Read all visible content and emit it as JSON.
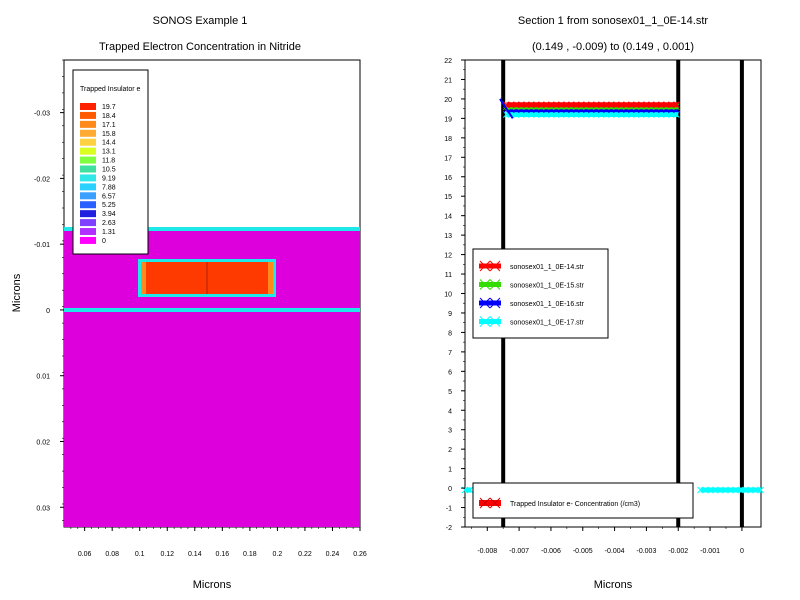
{
  "charts": {
    "left": {
      "title": "SONOS Example 1",
      "subtitle": "Trapped Electron Concentration in Nitride",
      "xlabel": "Microns",
      "ylabel": "Microns",
      "xticks": [
        "0.06",
        "0.08",
        "0.1",
        "0.12",
        "0.14",
        "0.16",
        "0.18",
        "0.2",
        "0.22",
        "0.24",
        "0.26"
      ],
      "yticks": [
        "-0.03",
        "-0.02",
        "-0.01",
        "0",
        "0.01",
        "0.02",
        "0.03"
      ],
      "legend_title": "Trapped Insulator e",
      "legend_levels": [
        "19.7",
        "18.4",
        "17.1",
        "15.8",
        "14.4",
        "13.1",
        "11.8",
        "10.5",
        "9.19",
        "7.88",
        "6.57",
        "5.25",
        "3.94",
        "2.63",
        "1.31",
        "0"
      ]
    },
    "right": {
      "title": "Section 1 from sonosex01_1_0E-14.str",
      "subtitle": "(0.149 , -0.009) to (0.149 , 0.001)",
      "xlabel": "Microns",
      "xticks": [
        "-0.008",
        "-0.007",
        "-0.006",
        "-0.005",
        "-0.004",
        "-0.003",
        "-0.002",
        "-0.001",
        "0"
      ],
      "yticks": [
        "-2",
        "-1",
        "0",
        "1",
        "2",
        "3",
        "4",
        "5",
        "6",
        "7",
        "8",
        "9",
        "10",
        "11",
        "12",
        "13",
        "14",
        "15",
        "16",
        "17",
        "18",
        "19",
        "20",
        "21",
        "22"
      ],
      "legend_series": [
        "sonosex01_1_0E-14.str",
        "sonosex01_1_0E-15.str",
        "sonosex01_1_0E-16.str",
        "sonosex01_1_0E-17.str"
      ],
      "legend_quantity": "Trapped Insulator e- Concentration (/cm3)"
    }
  },
  "colors": {
    "legend_scale": [
      "#ff2200",
      "#ff5a00",
      "#ff8a1a",
      "#ffaa33",
      "#ffd040",
      "#d8ff20",
      "#80ff40",
      "#40e0a0",
      "#30e8e8",
      "#2ad0ff",
      "#3aa0ff",
      "#2a60ff",
      "#2020e0",
      "#8040ff",
      "#b030ff",
      "#ff00ff"
    ],
    "series": [
      "#ff0000",
      "#33dd00",
      "#0000ff",
      "#00ffff"
    ],
    "substrate": "#dd00dd",
    "interface": "#1ee8e8",
    "trapped": "#ff3a00"
  },
  "chart_data": [
    {
      "type": "heatmap",
      "title": "SONOS Example 1",
      "subtitle": "Trapped Electron Concentration in Nitride",
      "xlabel": "Microns",
      "ylabel": "Microns",
      "xlim": [
        0.045,
        0.26
      ],
      "ylim": [
        -0.038,
        0.033
      ],
      "y_inverted": true,
      "colorbar_title": "Trapped Insulator e",
      "colorbar_levels": [
        19.7,
        18.4,
        17.1,
        15.8,
        14.4,
        13.1,
        11.8,
        10.5,
        9.19,
        7.88,
        6.57,
        5.25,
        3.94,
        2.63,
        1.31,
        0
      ],
      "regions": [
        {
          "value": 0,
          "x": [
            0.045,
            0.26
          ],
          "y": [
            -0.0115,
            0.033
          ]
        },
        {
          "value": 19.7,
          "x": [
            0.1,
            0.2
          ],
          "y": [
            -0.0072,
            -0.0022
          ]
        }
      ],
      "interfaces_y": [
        -0.0118,
        0.0
      ]
    },
    {
      "type": "line",
      "title": "Section 1 from sonosex01_1_0E-14.str",
      "subtitle": "(0.149 , -0.009) to (0.149 , 0.001)",
      "xlabel": "Microns",
      "xlim": [
        -0.0087,
        0.0006
      ],
      "ylim": [
        -2,
        22
      ],
      "vertical_lines_x": [
        -0.0075,
        -0.002,
        0
      ],
      "series": [
        {
          "name": "sonosex01_1_0E-14.str",
          "x": [
            -0.0074,
            -0.002
          ],
          "y": [
            19.7,
            19.7
          ]
        },
        {
          "name": "sonosex01_1_0E-15.str",
          "x": [
            -0.0074,
            -0.002
          ],
          "y": [
            19.6,
            19.6
          ]
        },
        {
          "name": "sonosex01_1_0E-16.str",
          "x": [
            -0.0074,
            -0.002
          ],
          "y": [
            19.45,
            19.45
          ]
        },
        {
          "name": "sonosex01_1_0E-17.str",
          "x": [
            -0.0074,
            -0.002
          ],
          "y": [
            19.2,
            19.2
          ]
        },
        {
          "x": [
            -0.0087,
            -0.0085
          ],
          "y": [
            -0.1,
            -0.1
          ]
        },
        {
          "x": [
            -0.0013,
            0.0006
          ],
          "y": [
            -0.1,
            -0.1
          ]
        }
      ]
    }
  ]
}
